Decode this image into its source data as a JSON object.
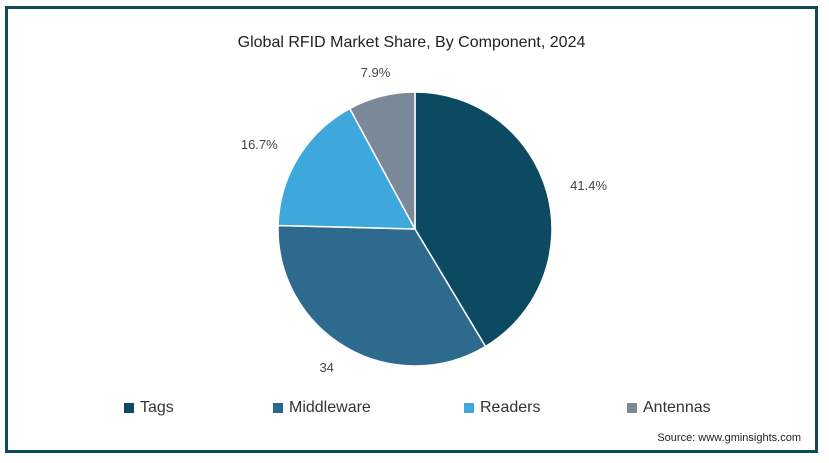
{
  "chart_data": {
    "type": "pie",
    "title": "Global RFID Market Share, By Component, 2024",
    "slices": [
      {
        "name": "Tags",
        "value": 41.4,
        "label": "41.4%",
        "color": "#0b4a60"
      },
      {
        "name": "Middleware",
        "value": 34,
        "label": "34",
        "color": "#2e6a8e"
      },
      {
        "name": "Readers",
        "value": 16.7,
        "label": "16.7%",
        "color": "#3ea8dc"
      },
      {
        "name": "Antennas",
        "value": 7.9,
        "label": "7.9%",
        "color": "#7a8898"
      }
    ],
    "legend_position": "bottom",
    "source": "Source: www.gminsights.com"
  }
}
